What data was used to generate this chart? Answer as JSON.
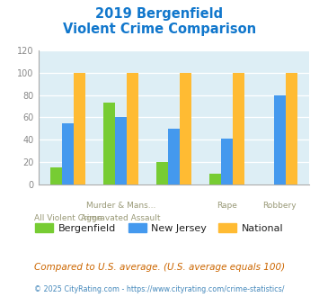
{
  "title_line1": "2019 Bergenfield",
  "title_line2": "Violent Crime Comparison",
  "bergenfield": [
    15,
    73,
    20,
    9,
    0
  ],
  "new_jersey": [
    55,
    60,
    50,
    41,
    80
  ],
  "national": [
    100,
    100,
    100,
    100,
    100
  ],
  "bar_colors": {
    "bergenfield": "#77cc33",
    "new_jersey": "#4499ee",
    "national": "#ffbb33"
  },
  "ylim": [
    0,
    120
  ],
  "yticks": [
    0,
    20,
    40,
    60,
    80,
    100,
    120
  ],
  "title_color": "#1177cc",
  "bg_color": "#ddeef5",
  "footer_text": "Compared to U.S. average. (U.S. average equals 100)",
  "credit_text": "© 2025 CityRating.com - https://www.cityrating.com/crime-statistics/",
  "legend_labels": [
    "Bergenfield",
    "New Jersey",
    "National"
  ],
  "x_upper_labels": [
    "",
    "Murder & Mans...",
    "",
    "Rape",
    "Robbery"
  ],
  "x_lower_labels": [
    "All Violent Crime",
    "Aggravated Assault",
    "",
    "",
    ""
  ]
}
